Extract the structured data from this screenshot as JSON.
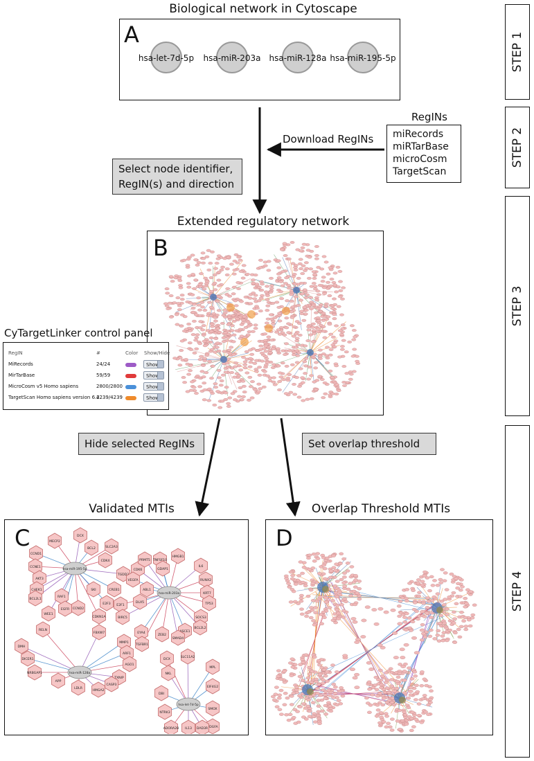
{
  "step1": {
    "title": "Biological network in Cytoscape",
    "letter": "A",
    "mirnas": [
      "hsa-let-7d-5p",
      "hsa-miR-203a",
      "hsa-miR-128a",
      "hsa-miR-195-5p"
    ]
  },
  "step2": {
    "download_label": "Download RegINs",
    "regins_title": "RegINs",
    "regins": [
      "miRecords",
      "miRTarBase",
      "microCosm",
      "TargetScan"
    ],
    "select_label": [
      "Select node identifier,",
      "RegIN(s) and direction"
    ]
  },
  "step3": {
    "title": "Extended regulatory network",
    "letter": "B"
  },
  "control_panel": {
    "title": "CyTargetLinker control panel",
    "headers": [
      "RegIN",
      "#",
      "Color",
      "Show/Hide"
    ],
    "rows": [
      {
        "name": "MiRecords",
        "count": "24/24",
        "color": "#9d5bc6",
        "toggle": "Show"
      },
      {
        "name": "MirTarBase",
        "count": "59/59",
        "color": "#e03a3a",
        "toggle": "Show"
      },
      {
        "name": "MicroCosm v5 Homo sapiens",
        "count": "2800/2800",
        "color": "#4a90d9",
        "toggle": "Show"
      },
      {
        "name": "TargetScan Homo sapiens version 6.2",
        "count": "4239/4239",
        "color": "#ef8b2c",
        "toggle": "Show"
      }
    ]
  },
  "step4": {
    "hide_label": "Hide selected RegINs",
    "overlap_label": "Set overlap threshold",
    "validated_title": "Validated MTIs",
    "validated_letter": "C",
    "overlap_title": "Overlap Threshold MTIs",
    "overlap_letter": "D"
  },
  "validated_network": {
    "hubs": [
      "hsa-miR-195-5p",
      "hsa-miR-203a",
      "hsa-miR-128a",
      "hsa-let-7d-5p"
    ],
    "genes": [
      "MECP2",
      "DCX",
      "BCL2",
      "SLC2A3",
      "CDK6",
      "TNFSF10",
      "HMGB1",
      "IL6",
      "CCND1",
      "CDK4",
      "PRMT5",
      "GDAP1",
      "CCNE1",
      "TGDD3",
      "VEGFA",
      "RUNX2",
      "AKT3",
      "ABL1",
      "KRT7",
      "CHEK1",
      "DLX5",
      "TP53",
      "BCL2L1",
      "RAF1",
      "CCND2",
      "SKI",
      "CREB1",
      "SOCS3",
      "WEE1",
      "E2F3",
      "E2F1",
      "BCL2L2",
      "EGFR",
      "CDKN1A",
      "BIRC5",
      "ASCE1",
      "RELN",
      "FBXW7",
      "EYA4",
      "ZEB2",
      "SMAD4",
      "MMP1",
      "TGFBR1",
      "DMH",
      "ARF1",
      "DCX",
      "SLC11A2",
      "DICER1",
      "AGO1",
      "NKL",
      "MPL",
      "NRBGAP1",
      "TXNIP",
      "DBI",
      "APP",
      "CASP3",
      "NTRK3",
      "LDLR",
      "HMGA2",
      "EIF4G2",
      "ADORA2B",
      "IL13",
      "SMOX",
      "PDGFA",
      "DAD3R"
    ]
  },
  "steps": [
    "STEP 1",
    "STEP 2",
    "STEP 3",
    "STEP 4"
  ]
}
